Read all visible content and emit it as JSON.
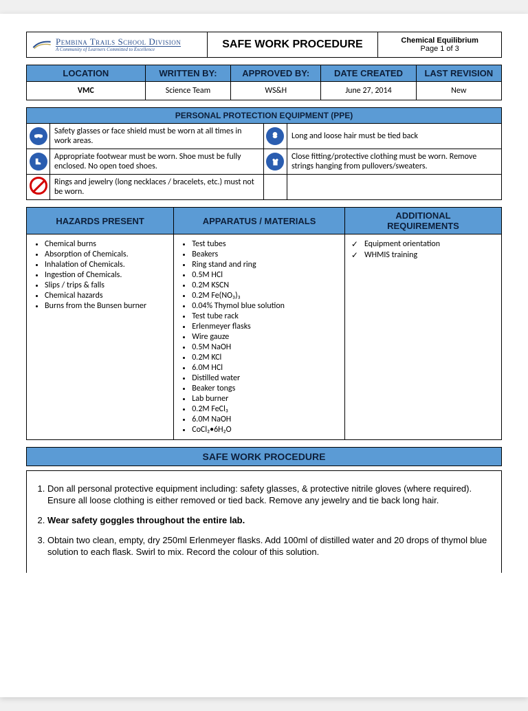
{
  "colors": {
    "blue_header": "#5b9bd5",
    "logo_blue": "#2a4f8e",
    "icon_blue": "#2a5db0",
    "ban_red": "#d40000"
  },
  "header": {
    "logo_main": "Pembina Trails School Division",
    "logo_sub": "A Community of Learners Committed to Excellence",
    "center": "SAFE WORK PROCEDURE",
    "right_title": "Chemical Equilibrium",
    "right_page": "Page 1 of 3"
  },
  "info": {
    "headers": [
      "LOCATION",
      "WRITTEN BY:",
      "APPROVED BY:",
      "DATE CREATED",
      "LAST REVISION"
    ],
    "values": [
      "VMC",
      "Science Team",
      "WS&H",
      "June 27, 2014",
      "New"
    ]
  },
  "ppe": {
    "title": "PERSONAL PROTECTION EQUIPMENT (PPE)",
    "rows": [
      {
        "left_icon": "glasses",
        "left": "Safety glasses or face shield must be worn at all times in work areas.",
        "right_icon": "hair",
        "right": "Long and loose hair must be tied back"
      },
      {
        "left_icon": "boot",
        "left": "Appropriate footwear must be worn. Shoe must be fully enclosed.  No open toed shoes.",
        "right_icon": "clothing",
        "right": "Close fitting/protective clothing must be worn. Remove strings hanging from pullovers/sweaters."
      },
      {
        "left_icon": "ban",
        "left": "Rings and jewelry (long necklaces / bracelets, etc.) must not be worn.",
        "right_icon": "",
        "right": ""
      }
    ]
  },
  "three": {
    "hazards_title": "HAZARDS PRESENT",
    "apparatus_title": "APPARATUS / MATERIALS",
    "reqs_title_l1": "ADDITIONAL",
    "reqs_title_l2": "REQUIREMENTS",
    "hazards": [
      "Chemical burns",
      "Absorption of Chemicals.",
      "Inhalation of Chemicals.",
      "Ingestion of Chemicals.",
      "Slips / trips & falls",
      "Chemical hazards",
      "Burns from the Bunsen burner"
    ],
    "apparatus": [
      "Test tubes",
      "Beakers",
      "Ring stand and ring",
      "0.5M HCl",
      "0.2M KSCN",
      "0.2M Fe(NO₃)₃",
      "0.04% Thymol blue solution",
      "Test tube rack",
      "Erlenmeyer flasks",
      "Wire gauze",
      "0.5M NaOH",
      "0.2M KCl",
      "6.0M HCl",
      "Distilled water",
      "Beaker tongs",
      "Lab burner",
      "0.2M FeCl₃",
      "6.0M NaOH",
      "CoCl₂•6H₂O"
    ],
    "reqs": [
      "Equipment orientation",
      "WHMIS training"
    ]
  },
  "swp": {
    "title": "SAFE WORK PROCEDURE",
    "step1": "Don all personal protective equipment including: safety glasses, & protective nitrile gloves (where required). Ensure all loose clothing is either removed or tied back. Remove any jewelry and tie back long hair.",
    "step2": "Wear safety goggles throughout the entire lab.",
    "step3": "Obtain two clean, empty, dry 250ml Erlenmeyer flasks. Add 100ml of distilled water and 20 drops of thymol blue solution to each flask. Swirl to mix. Record the colour of this solution."
  }
}
